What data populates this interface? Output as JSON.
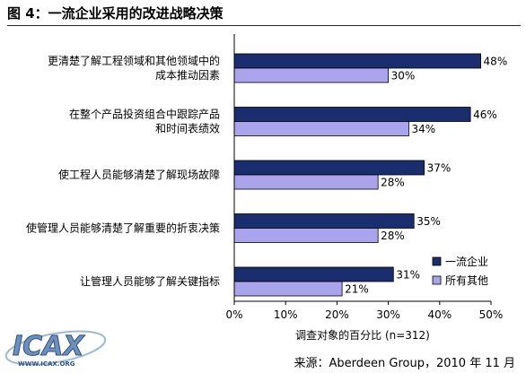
{
  "figure": {
    "title": "图 4：一流企业采用的改进战略决策",
    "source": "来源：Aberdeen Group，2010 年 11 月",
    "logo_text": "ICAX",
    "logo_url_text": "WWW.ICAX.ORG"
  },
  "chart_data": {
    "type": "bar",
    "orientation": "horizontal",
    "title": "图 4：一流企业采用的改进战略决策",
    "xlabel": "调查对象的百分比 (n=312)",
    "ylabel": "",
    "xlim": [
      0,
      50
    ],
    "x_ticks": [
      "0%",
      "10%",
      "20%",
      "30%",
      "40%",
      "50%"
    ],
    "grid": false,
    "legend_position": "bottom-right",
    "categories": [
      [
        "更清楚了解工程领域和其他领域中的",
        "成本推动因素"
      ],
      [
        "在整个产品投资组合中跟踪产品",
        "和时间表绩效"
      ],
      [
        "使工程人员能够清楚了解现场故障"
      ],
      [
        "使管理人员能够清楚了解重要的折衷决策"
      ],
      [
        "让管理人员能够了解关键指标"
      ]
    ],
    "series": [
      {
        "name": "一流企业",
        "color": "#1a2d6e",
        "values": [
          48,
          46,
          37,
          35,
          31
        ],
        "labels": [
          "48%",
          "46%",
          "37%",
          "35%",
          "31%"
        ]
      },
      {
        "name": "所有其他",
        "color": "#a9a4ec",
        "values": [
          30,
          34,
          28,
          28,
          21
        ],
        "labels": [
          "30%",
          "34%",
          "28%",
          "28%",
          "21%"
        ]
      }
    ]
  }
}
